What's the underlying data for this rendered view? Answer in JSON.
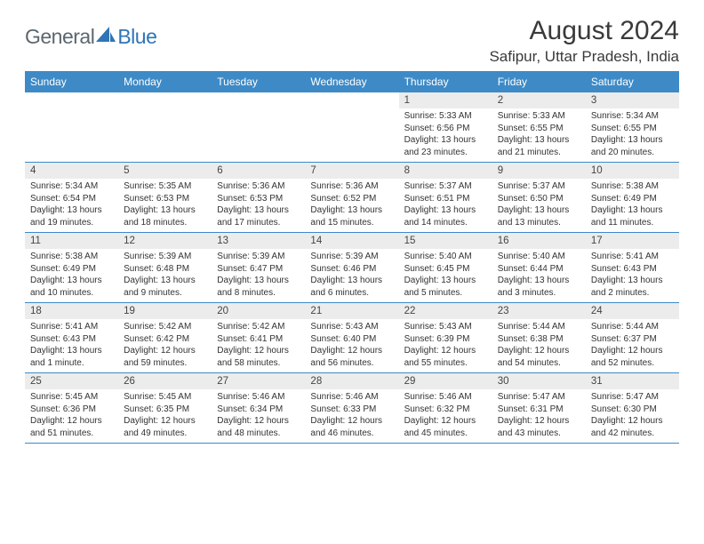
{
  "logo": {
    "part1": "General",
    "part2": "Blue"
  },
  "title": "August 2024",
  "location": "Safipur, Uttar Pradesh, India",
  "colors": {
    "header_bg": "#3d8ac7",
    "header_text": "#ffffff",
    "daynum_bg": "#ececec",
    "divider": "#3d8ac7",
    "logo_gray": "#5b6770",
    "logo_blue": "#2e75b6"
  },
  "weekdays": [
    "Sunday",
    "Monday",
    "Tuesday",
    "Wednesday",
    "Thursday",
    "Friday",
    "Saturday"
  ],
  "weeks": [
    {
      "nums": [
        "",
        "",
        "",
        "",
        "1",
        "2",
        "3"
      ],
      "cells": [
        "",
        "",
        "",
        "",
        "Sunrise: 5:33 AM\nSunset: 6:56 PM\nDaylight: 13 hours and 23 minutes.",
        "Sunrise: 5:33 AM\nSunset: 6:55 PM\nDaylight: 13 hours and 21 minutes.",
        "Sunrise: 5:34 AM\nSunset: 6:55 PM\nDaylight: 13 hours and 20 minutes."
      ]
    },
    {
      "nums": [
        "4",
        "5",
        "6",
        "7",
        "8",
        "9",
        "10"
      ],
      "cells": [
        "Sunrise: 5:34 AM\nSunset: 6:54 PM\nDaylight: 13 hours and 19 minutes.",
        "Sunrise: 5:35 AM\nSunset: 6:53 PM\nDaylight: 13 hours and 18 minutes.",
        "Sunrise: 5:36 AM\nSunset: 6:53 PM\nDaylight: 13 hours and 17 minutes.",
        "Sunrise: 5:36 AM\nSunset: 6:52 PM\nDaylight: 13 hours and 15 minutes.",
        "Sunrise: 5:37 AM\nSunset: 6:51 PM\nDaylight: 13 hours and 14 minutes.",
        "Sunrise: 5:37 AM\nSunset: 6:50 PM\nDaylight: 13 hours and 13 minutes.",
        "Sunrise: 5:38 AM\nSunset: 6:49 PM\nDaylight: 13 hours and 11 minutes."
      ]
    },
    {
      "nums": [
        "11",
        "12",
        "13",
        "14",
        "15",
        "16",
        "17"
      ],
      "cells": [
        "Sunrise: 5:38 AM\nSunset: 6:49 PM\nDaylight: 13 hours and 10 minutes.",
        "Sunrise: 5:39 AM\nSunset: 6:48 PM\nDaylight: 13 hours and 9 minutes.",
        "Sunrise: 5:39 AM\nSunset: 6:47 PM\nDaylight: 13 hours and 8 minutes.",
        "Sunrise: 5:39 AM\nSunset: 6:46 PM\nDaylight: 13 hours and 6 minutes.",
        "Sunrise: 5:40 AM\nSunset: 6:45 PM\nDaylight: 13 hours and 5 minutes.",
        "Sunrise: 5:40 AM\nSunset: 6:44 PM\nDaylight: 13 hours and 3 minutes.",
        "Sunrise: 5:41 AM\nSunset: 6:43 PM\nDaylight: 13 hours and 2 minutes."
      ]
    },
    {
      "nums": [
        "18",
        "19",
        "20",
        "21",
        "22",
        "23",
        "24"
      ],
      "cells": [
        "Sunrise: 5:41 AM\nSunset: 6:43 PM\nDaylight: 13 hours and 1 minute.",
        "Sunrise: 5:42 AM\nSunset: 6:42 PM\nDaylight: 12 hours and 59 minutes.",
        "Sunrise: 5:42 AM\nSunset: 6:41 PM\nDaylight: 12 hours and 58 minutes.",
        "Sunrise: 5:43 AM\nSunset: 6:40 PM\nDaylight: 12 hours and 56 minutes.",
        "Sunrise: 5:43 AM\nSunset: 6:39 PM\nDaylight: 12 hours and 55 minutes.",
        "Sunrise: 5:44 AM\nSunset: 6:38 PM\nDaylight: 12 hours and 54 minutes.",
        "Sunrise: 5:44 AM\nSunset: 6:37 PM\nDaylight: 12 hours and 52 minutes."
      ]
    },
    {
      "nums": [
        "25",
        "26",
        "27",
        "28",
        "29",
        "30",
        "31"
      ],
      "cells": [
        "Sunrise: 5:45 AM\nSunset: 6:36 PM\nDaylight: 12 hours and 51 minutes.",
        "Sunrise: 5:45 AM\nSunset: 6:35 PM\nDaylight: 12 hours and 49 minutes.",
        "Sunrise: 5:46 AM\nSunset: 6:34 PM\nDaylight: 12 hours and 48 minutes.",
        "Sunrise: 5:46 AM\nSunset: 6:33 PM\nDaylight: 12 hours and 46 minutes.",
        "Sunrise: 5:46 AM\nSunset: 6:32 PM\nDaylight: 12 hours and 45 minutes.",
        "Sunrise: 5:47 AM\nSunset: 6:31 PM\nDaylight: 12 hours and 43 minutes.",
        "Sunrise: 5:47 AM\nSunset: 6:30 PM\nDaylight: 12 hours and 42 minutes."
      ]
    }
  ]
}
